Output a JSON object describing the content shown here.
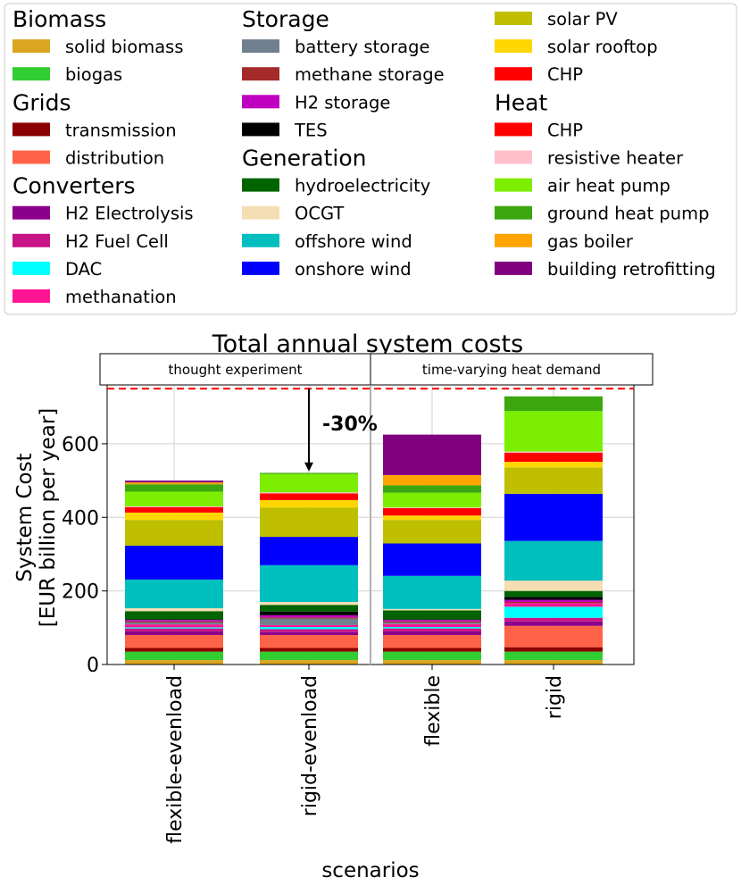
{
  "legend": {
    "groups": [
      {
        "title": "Biomass",
        "items": [
          {
            "label": "solid biomass",
            "color": "#DAA520"
          },
          {
            "label": "biogas",
            "color": "#32CD32"
          }
        ]
      },
      {
        "title": "Grids",
        "items": [
          {
            "label": "transmission",
            "color": "#8B0000"
          },
          {
            "label": "distribution",
            "color": "#FF6347"
          }
        ]
      },
      {
        "title": "Converters",
        "items": [
          {
            "label": "H2 Electrolysis",
            "color": "#8B008B"
          },
          {
            "label": "H2 Fuel Cell",
            "color": "#C71585"
          },
          {
            "label": "DAC",
            "color": "#00FFFF"
          },
          {
            "label": "methanation",
            "color": "#FF1493"
          }
        ]
      },
      {
        "title": "Storage",
        "items": [
          {
            "label": "battery storage",
            "color": "#708090"
          },
          {
            "label": "methane storage",
            "color": "#A52A2A"
          },
          {
            "label": "H2 storage",
            "color": "#C000C0"
          },
          {
            "label": "TES",
            "color": "#000000"
          }
        ]
      },
      {
        "title": "Generation",
        "items": [
          {
            "label": "hydroelectricity",
            "color": "#006400"
          },
          {
            "label": "OCGT",
            "color": "#F5DEB3"
          },
          {
            "label": "offshore wind",
            "color": "#00BFBF"
          },
          {
            "label": "onshore wind",
            "color": "#0000FF"
          },
          {
            "label": "solar PV",
            "color": "#BFBF00"
          },
          {
            "label": "solar rooftop",
            "color": "#FFD700"
          },
          {
            "label": "CHP",
            "color": "#FF0000"
          }
        ]
      },
      {
        "title": "Heat",
        "items": [
          {
            "label": "CHP",
            "color": "#FF0000"
          },
          {
            "label": "resistive heater",
            "color": "#FFC0CB"
          },
          {
            "label": "air heat pump",
            "color": "#7CEE00"
          },
          {
            "label": "ground heat pump",
            "color": "#3CA60F"
          },
          {
            "label": "gas boiler",
            "color": "#FFA500"
          },
          {
            "label": "building retrofitting",
            "color": "#800080"
          }
        ]
      }
    ]
  },
  "chart_data": {
    "type": "bar",
    "stacked": true,
    "title": "Total annual system costs",
    "xlabel": "scenarios",
    "ylabel": "System Cost\n[EUR billion per year]",
    "ylim": [
      0,
      760
    ],
    "yticks": [
      0,
      200,
      400,
      600
    ],
    "grid": true,
    "categories": [
      "flexible-evenload",
      "rigid-evenload",
      "flexible",
      "rigid"
    ],
    "panels": [
      {
        "label": "thought experiment",
        "categories": [
          "flexible-evenload",
          "rigid-evenload"
        ]
      },
      {
        "label": "time-varying heat demand",
        "categories": [
          "flexible",
          "rigid"
        ]
      }
    ],
    "reference_line": {
      "value": 750,
      "style": "dashed",
      "color": "#FF0000"
    },
    "annotation": {
      "text": "-30%",
      "from_value": 750,
      "to_value": 525,
      "category": "rigid-evenload"
    },
    "series": [
      {
        "name": "solid biomass",
        "color": "#DAA520",
        "values": [
          12,
          12,
          12,
          12
        ]
      },
      {
        "name": "biogas",
        "color": "#32CD32",
        "values": [
          23,
          23,
          23,
          23
        ]
      },
      {
        "name": "transmission",
        "color": "#8B0000",
        "values": [
          10,
          10,
          10,
          12
        ]
      },
      {
        "name": "distribution",
        "color": "#FF6347",
        "values": [
          35,
          35,
          35,
          58
        ]
      },
      {
        "name": "H2 Electrolysis",
        "color": "#8B008B",
        "values": [
          10,
          8,
          10,
          12
        ]
      },
      {
        "name": "H2 Fuel Cell",
        "color": "#C71585",
        "values": [
          8,
          8,
          8,
          10
        ]
      },
      {
        "name": "DAC",
        "color": "#00FFFF",
        "values": [
          3,
          6,
          4,
          30
        ]
      },
      {
        "name": "methanation",
        "color": "#FF1493",
        "values": [
          8,
          5,
          8,
          10
        ]
      },
      {
        "name": "battery storage",
        "color": "#708090",
        "values": [
          5,
          18,
          4,
          0
        ]
      },
      {
        "name": "methane storage",
        "color": "#A52A2A",
        "values": [
          3,
          3,
          3,
          3
        ]
      },
      {
        "name": "H2 storage",
        "color": "#C000C0",
        "values": [
          4,
          6,
          4,
          6
        ]
      },
      {
        "name": "TES",
        "color": "#000000",
        "values": [
          2,
          10,
          2,
          8
        ]
      },
      {
        "name": "hydroelectricity",
        "color": "#006400",
        "values": [
          22,
          18,
          24,
          16
        ]
      },
      {
        "name": "OCGT",
        "color": "#F5DEB3",
        "values": [
          8,
          8,
          4,
          28
        ]
      },
      {
        "name": "offshore wind",
        "color": "#00BFBF",
        "values": [
          78,
          100,
          90,
          108
        ]
      },
      {
        "name": "onshore wind",
        "color": "#0000FF",
        "values": [
          92,
          77,
          88,
          128
        ]
      },
      {
        "name": "solar PV",
        "color": "#BFBF00",
        "values": [
          70,
          80,
          64,
          72
        ]
      },
      {
        "name": "solar rooftop",
        "color": "#FFD700",
        "values": [
          20,
          20,
          12,
          15
        ]
      },
      {
        "name": "CHP",
        "color": "#FF0000",
        "values": [
          15,
          18,
          20,
          25
        ]
      },
      {
        "name": "resistive heater",
        "color": "#FFC0CB",
        "values": [
          2,
          3,
          2,
          3
        ]
      },
      {
        "name": "air heat pump",
        "color": "#7CEE00",
        "values": [
          40,
          50,
          40,
          110
        ]
      },
      {
        "name": "ground heat pump",
        "color": "#3CA60F",
        "values": [
          20,
          3,
          20,
          40
        ]
      },
      {
        "name": "gas boiler",
        "color": "#FFA500",
        "values": [
          5,
          0,
          28,
          0
        ]
      },
      {
        "name": "building retrofitting",
        "color": "#800080",
        "values": [
          5,
          0,
          110,
          0
        ]
      }
    ]
  }
}
